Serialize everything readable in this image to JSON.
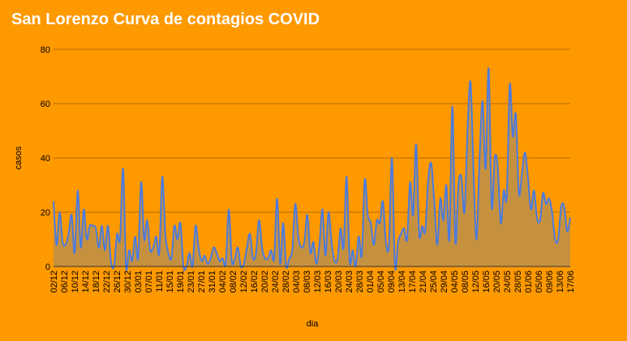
{
  "chart_data": {
    "type": "area",
    "title": "San Lorenzo Curva de contagios COVID",
    "xlabel": "dia",
    "ylabel": "casos",
    "ylim": [
      0,
      80
    ],
    "yticks": [
      "0",
      "20",
      "40",
      "60",
      "80"
    ],
    "grid": true,
    "legend": "none",
    "x_tick_labels": [
      "02/12",
      "06/12",
      "10/12",
      "14/12",
      "18/12",
      "22/12",
      "26/12",
      "30/12",
      "03/01",
      "07/01",
      "11/01",
      "15/01",
      "19/01",
      "23/01",
      "27/01",
      "31/01",
      "04/02",
      "08/02",
      "12/02",
      "16/02",
      "20/02",
      "24/02",
      "28/02",
      "04/03",
      "08/03",
      "12/03",
      "16/03",
      "20/03",
      "24/03",
      "28/03",
      "01/04",
      "05/04",
      "09/04",
      "13/04",
      "17/04",
      "21/04",
      "25/04",
      "29/04",
      "04/05",
      "08/05",
      "12/05",
      "16/05",
      "20/05",
      "24/05",
      "28/05",
      "01/06",
      "05/06",
      "09/06",
      "13/06",
      "17/06"
    ],
    "series": [
      {
        "values": [
          24,
          8,
          20,
          9,
          8,
          12,
          19,
          5,
          28,
          7,
          21,
          10,
          15,
          15,
          14,
          7,
          15,
          6,
          15,
          2,
          0,
          12,
          10,
          36,
          0,
          6,
          2,
          11,
          3,
          31,
          10,
          17,
          6,
          7,
          11,
          5,
          33,
          12,
          5,
          3,
          15,
          10,
          16,
          0,
          0,
          5,
          0,
          15,
          7,
          2,
          4,
          1,
          3,
          7,
          5,
          2,
          3,
          1,
          21,
          2,
          3,
          7,
          0,
          1,
          7,
          12,
          3,
          5,
          17,
          7,
          3,
          3,
          6,
          3,
          25,
          1,
          16,
          0,
          3,
          6,
          23,
          11,
          7,
          9,
          19,
          5,
          9,
          1,
          8,
          21,
          4,
          20,
          9,
          2,
          3,
          14,
          7,
          33,
          2,
          6,
          0,
          11,
          4,
          32,
          19,
          16,
          8,
          17,
          16,
          24,
          9,
          8,
          40,
          0,
          9,
          12,
          14,
          10,
          31,
          19,
          45,
          12,
          15,
          13,
          32,
          38,
          24,
          8,
          25,
          17,
          30,
          10,
          59,
          9,
          30,
          33,
          20,
          50,
          68,
          35,
          10,
          40,
          61,
          36,
          73,
          22,
          40,
          37,
          16,
          28,
          26,
          67,
          48,
          56,
          27,
          34,
          42,
          33,
          21,
          28,
          18,
          17,
          27,
          23,
          25,
          20,
          10,
          10,
          22,
          22,
          13,
          18
        ],
        "color": "#4a7be0",
        "fill": "#c6913f"
      }
    ]
  }
}
